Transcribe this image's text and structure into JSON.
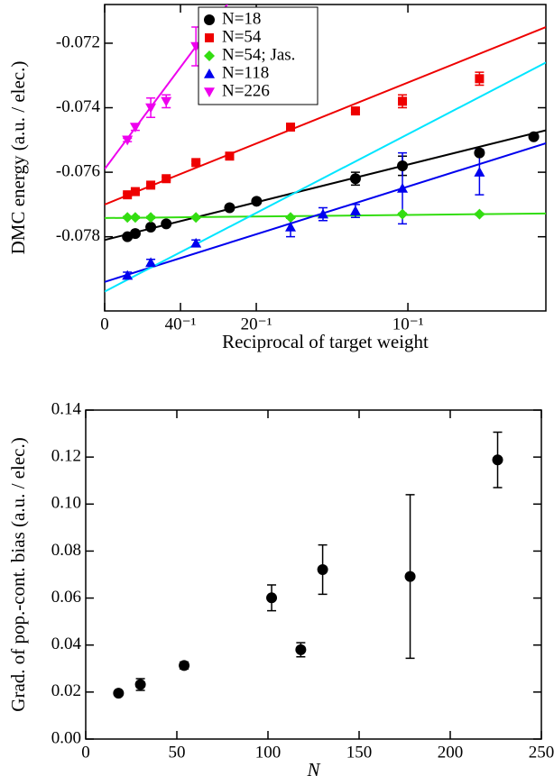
{
  "chart_data": [
    {
      "type": "scatter",
      "xlabel": "Reciprocal of target weight",
      "ylabel": "DMC energy (a.u. / elec.)",
      "xlim": [
        0,
        0.1455
      ],
      "ylim": [
        -0.0803,
        -0.0708
      ],
      "xticks": [
        0,
        {
          "value": 0.025,
          "label": "40⁻¹"
        },
        {
          "value": 0.05,
          "label": "20⁻¹"
        },
        {
          "value": 0.1,
          "label": "10⁻¹"
        }
      ],
      "yticks": [
        -0.078,
        -0.076,
        -0.074,
        -0.072
      ],
      "legend": "upper left",
      "series": [
        {
          "name": "N=18",
          "color": "#000000",
          "marker": "circle",
          "x": [
            0.0075,
            0.0101,
            0.0152,
            0.0203,
            0.0412,
            0.0501,
            0.0827,
            0.0982,
            0.1236,
            0.1415
          ],
          "values": [
            -0.078,
            -0.0779,
            -0.0777,
            -0.0776,
            -0.0771,
            -0.0769,
            -0.0762,
            -0.0758,
            -0.0754,
            -0.0749
          ],
          "errors": [
            5e-05,
            5e-05,
            5e-05,
            5e-05,
            5e-05,
            5e-05,
            0.0002,
            0.0003,
            5e-05,
            5e-05
          ]
        },
        {
          "name": "N=54",
          "color": "#ee0000",
          "marker": "square",
          "x": [
            0.0075,
            0.0101,
            0.0152,
            0.0203,
            0.0301,
            0.0412,
            0.0613,
            0.0827,
            0.0982,
            0.1236
          ],
          "values": [
            -0.0767,
            -0.0766,
            -0.0764,
            -0.0762,
            -0.0757,
            -0.0755,
            -0.0746,
            -0.0741,
            -0.0738,
            -0.0731
          ],
          "errors": [
            5e-05,
            5e-05,
            5e-05,
            5e-05,
            5e-05,
            5e-05,
            5e-05,
            5e-05,
            0.0002,
            0.0002
          ]
        },
        {
          "name": "N=54; Jas.",
          "color": "#33dd11",
          "marker": "diamond",
          "x": [
            0.0075,
            0.0101,
            0.0152,
            0.0301,
            0.0613,
            0.0982,
            0.1236
          ],
          "values": [
            -0.0774,
            -0.0774,
            -0.0774,
            -0.0774,
            -0.0774,
            -0.0773,
            -0.0773
          ],
          "errors": [
            3e-05,
            3e-05,
            3e-05,
            3e-05,
            3e-05,
            3e-05,
            3e-05
          ]
        },
        {
          "name": "N=118",
          "color": "#0000ee",
          "marker": "triangle-up",
          "x": [
            0.0075,
            0.0152,
            0.0301,
            0.0613,
            0.072,
            0.0827,
            0.0982,
            0.1236
          ],
          "values": [
            -0.0792,
            -0.0788,
            -0.0782,
            -0.0777,
            -0.0773,
            -0.0772,
            -0.0765,
            -0.076
          ],
          "errors": [
            0.0001,
            0.0001,
            0.0001,
            0.0003,
            0.0002,
            0.0002,
            0.0011,
            0.0007
          ]
        },
        {
          "name": "N=226",
          "color": "#ee00ee",
          "marker": "triangle-down",
          "x": [
            0.0075,
            0.0101,
            0.0152,
            0.0203,
            0.0301
          ],
          "values": [
            -0.075,
            -0.0746,
            -0.074,
            -0.0738,
            -0.0721
          ],
          "errors": [
            5e-05,
            0.0001,
            0.0003,
            0.0002,
            0.0006
          ]
        }
      ],
      "lines": [
        {
          "color": "#000000",
          "x": [
            0,
            0.1455
          ],
          "y": [
            -0.0781,
            -0.0747
          ]
        },
        {
          "color": "#ee0000",
          "x": [
            0,
            0.1455
          ],
          "y": [
            -0.077,
            -0.0715
          ]
        },
        {
          "color": "#33dd11",
          "x": [
            0,
            0.1455
          ],
          "y": [
            -0.07742,
            -0.07728
          ]
        },
        {
          "color": "#0000ee",
          "x": [
            0,
            0.1455
          ],
          "y": [
            -0.0794,
            -0.0751
          ]
        },
        {
          "color": "#00e5ff",
          "x": [
            0,
            0.1455
          ],
          "y": [
            -0.0797,
            -0.0726
          ]
        },
        {
          "color": "#ee00ee",
          "x": [
            0,
            0.042
          ],
          "y": [
            -0.0759,
            -0.0706
          ]
        }
      ]
    },
    {
      "type": "scatter",
      "xlabel": "N",
      "ylabel": "Grad. of pop.-cont. bias (a.u. / elec.)",
      "xlim": [
        0,
        250
      ],
      "ylim": [
        0,
        0.14
      ],
      "xticks": [
        0,
        50,
        100,
        150,
        200,
        250
      ],
      "yticks": [
        {
          "value": 0,
          "label": "0.00"
        },
        {
          "value": 0.02,
          "label": "0.02"
        },
        {
          "value": 0.04,
          "label": "0.04"
        },
        {
          "value": 0.06,
          "label": "0.06"
        },
        {
          "value": 0.08,
          "label": "0.08"
        },
        {
          "value": 0.1,
          "label": "0.10"
        },
        {
          "value": 0.12,
          "label": "0.12"
        },
        {
          "value": 0.14,
          "label": "0.14"
        }
      ],
      "series": [
        {
          "color": "#000000",
          "marker": "circle",
          "x": [
            18,
            30,
            54,
            102,
            118,
            130,
            178,
            226
          ],
          "values": [
            0.0195,
            0.0232,
            0.0313,
            0.0601,
            0.038,
            0.0721,
            0.0692,
            0.1188
          ],
          "errors": [
            0.0005,
            0.0025,
            0.0015,
            0.0055,
            0.003,
            0.0105,
            0.0348,
            0.0118
          ]
        }
      ]
    }
  ]
}
